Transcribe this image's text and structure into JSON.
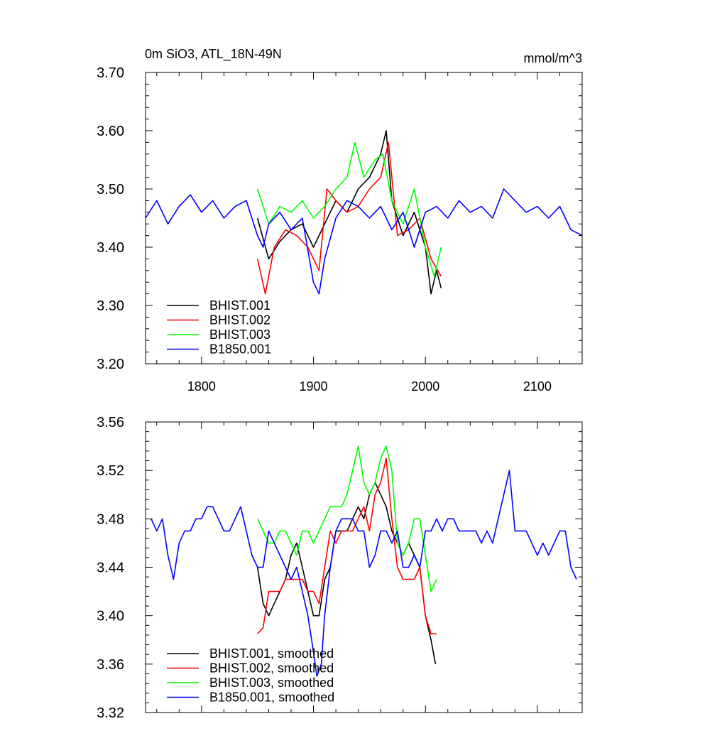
{
  "chart_data": [
    {
      "type": "line",
      "title": "0m SiO3, ATL_18N-49N",
      "units": "mmol/m^3",
      "xlim": [
        1750,
        2140
      ],
      "ylim": [
        3.2,
        3.7
      ],
      "xticks": [
        1800,
        1900,
        2000,
        2100
      ],
      "xtick_labels": [
        "1800",
        "1900",
        "2000",
        "2100"
      ],
      "yticks": [
        3.2,
        3.3,
        3.4,
        3.5,
        3.6,
        3.7
      ],
      "ytick_labels": [
        "3.20",
        "3.30",
        "3.40",
        "3.50",
        "3.60",
        "3.70"
      ],
      "grid": false,
      "legend_position": "bottom-left",
      "series": [
        {
          "name": "BHIST.001",
          "color": "#000000",
          "x": [
            1850,
            1860,
            1870,
            1880,
            1890,
            1900,
            1910,
            1920,
            1930,
            1940,
            1950,
            1960,
            1965,
            1970,
            1980,
            1990,
            2000,
            2005,
            2010,
            2014
          ],
          "y": [
            3.45,
            3.38,
            3.41,
            3.43,
            3.44,
            3.4,
            3.44,
            3.48,
            3.46,
            3.5,
            3.52,
            3.56,
            3.6,
            3.48,
            3.42,
            3.46,
            3.4,
            3.32,
            3.36,
            3.33
          ]
        },
        {
          "name": "BHIST.002",
          "color": "#ff0000",
          "x": [
            1850,
            1857,
            1865,
            1875,
            1885,
            1895,
            1905,
            1912,
            1920,
            1930,
            1940,
            1950,
            1960,
            1967,
            1975,
            1985,
            1995,
            2005,
            2014
          ],
          "y": [
            3.38,
            3.32,
            3.4,
            3.43,
            3.42,
            3.4,
            3.36,
            3.5,
            3.48,
            3.46,
            3.47,
            3.5,
            3.52,
            3.58,
            3.42,
            3.43,
            3.45,
            3.38,
            3.35
          ]
        },
        {
          "name": "BHIST.003",
          "color": "#00ff00",
          "x": [
            1850,
            1860,
            1870,
            1880,
            1890,
            1900,
            1910,
            1920,
            1930,
            1937,
            1945,
            1955,
            1962,
            1970,
            1980,
            1990,
            2000,
            2008,
            2014
          ],
          "y": [
            3.5,
            3.44,
            3.47,
            3.46,
            3.48,
            3.45,
            3.47,
            3.5,
            3.52,
            3.58,
            3.52,
            3.55,
            3.56,
            3.48,
            3.44,
            3.5,
            3.4,
            3.35,
            3.4
          ]
        },
        {
          "name": "B1850.001",
          "color": "#0000ff",
          "x": [
            1750,
            1760,
            1770,
            1780,
            1790,
            1800,
            1810,
            1820,
            1830,
            1840,
            1850,
            1855,
            1860,
            1870,
            1880,
            1890,
            1900,
            1905,
            1910,
            1920,
            1930,
            1940,
            1950,
            1960,
            1970,
            1980,
            1990,
            2000,
            2010,
            2020,
            2030,
            2040,
            2050,
            2060,
            2070,
            2080,
            2090,
            2100,
            2110,
            2120,
            2130,
            2140
          ],
          "y": [
            3.45,
            3.48,
            3.44,
            3.47,
            3.49,
            3.46,
            3.48,
            3.45,
            3.47,
            3.48,
            3.42,
            3.4,
            3.44,
            3.46,
            3.43,
            3.45,
            3.34,
            3.32,
            3.38,
            3.45,
            3.48,
            3.47,
            3.45,
            3.47,
            3.43,
            3.46,
            3.4,
            3.46,
            3.47,
            3.45,
            3.48,
            3.46,
            3.47,
            3.45,
            3.5,
            3.48,
            3.46,
            3.47,
            3.45,
            3.47,
            3.43,
            3.42
          ]
        }
      ]
    },
    {
      "type": "line",
      "xlim": [
        1750,
        2140
      ],
      "ylim": [
        3.32,
        3.56
      ],
      "xticks": [
        1800,
        1900,
        2000,
        2100
      ],
      "yticks": [
        3.32,
        3.36,
        3.4,
        3.44,
        3.48,
        3.52,
        3.56
      ],
      "ytick_labels": [
        "3.32",
        "3.36",
        "3.40",
        "3.44",
        "3.48",
        "3.52",
        "3.56"
      ],
      "grid": false,
      "legend_position": "bottom-left",
      "series": [
        {
          "name": "BHIST.001, smoothed",
          "color": "#000000",
          "x": [
            1850,
            1855,
            1860,
            1865,
            1870,
            1875,
            1880,
            1885,
            1890,
            1895,
            1900,
            1905,
            1910,
            1915,
            1920,
            1925,
            1930,
            1935,
            1940,
            1945,
            1950,
            1955,
            1960,
            1965,
            1970,
            1975,
            1980,
            1985,
            1990,
            1995,
            2000,
            2005,
            2009
          ],
          "y": [
            3.44,
            3.41,
            3.4,
            3.41,
            3.42,
            3.43,
            3.45,
            3.46,
            3.44,
            3.42,
            3.4,
            3.4,
            3.43,
            3.44,
            3.47,
            3.47,
            3.47,
            3.48,
            3.49,
            3.48,
            3.5,
            3.51,
            3.5,
            3.49,
            3.47,
            3.46,
            3.45,
            3.46,
            3.45,
            3.44,
            3.4,
            3.38,
            3.36
          ]
        },
        {
          "name": "BHIST.002, smoothed",
          "color": "#ff0000",
          "x": [
            1850,
            1855,
            1860,
            1865,
            1870,
            1875,
            1880,
            1885,
            1890,
            1895,
            1900,
            1905,
            1910,
            1915,
            1920,
            1925,
            1930,
            1935,
            1940,
            1945,
            1950,
            1955,
            1960,
            1965,
            1970,
            1975,
            1980,
            1985,
            1990,
            1995,
            2000,
            2005,
            2010
          ],
          "y": [
            3.385,
            3.39,
            3.42,
            3.42,
            3.42,
            3.43,
            3.43,
            3.43,
            3.43,
            3.42,
            3.42,
            3.41,
            3.44,
            3.47,
            3.46,
            3.47,
            3.47,
            3.47,
            3.48,
            3.49,
            3.47,
            3.5,
            3.51,
            3.53,
            3.48,
            3.44,
            3.43,
            3.43,
            3.43,
            3.44,
            3.4,
            3.385,
            3.385
          ]
        },
        {
          "name": "BHIST.003, smoothed",
          "color": "#00ff00",
          "x": [
            1850,
            1855,
            1860,
            1865,
            1870,
            1875,
            1880,
            1885,
            1890,
            1895,
            1900,
            1905,
            1910,
            1915,
            1920,
            1925,
            1930,
            1935,
            1940,
            1945,
            1950,
            1955,
            1960,
            1965,
            1970,
            1975,
            1980,
            1985,
            1990,
            1995,
            2000,
            2005,
            2010
          ],
          "y": [
            3.48,
            3.47,
            3.46,
            3.46,
            3.47,
            3.47,
            3.46,
            3.45,
            3.47,
            3.47,
            3.46,
            3.47,
            3.48,
            3.49,
            3.49,
            3.49,
            3.5,
            3.52,
            3.54,
            3.51,
            3.5,
            3.51,
            3.53,
            3.54,
            3.52,
            3.46,
            3.45,
            3.46,
            3.48,
            3.48,
            3.45,
            3.42,
            3.43
          ]
        },
        {
          "name": "B1850.001, smoothed",
          "color": "#0000ff",
          "x": [
            1755,
            1760,
            1765,
            1770,
            1775,
            1780,
            1785,
            1790,
            1795,
            1800,
            1805,
            1810,
            1815,
            1820,
            1825,
            1830,
            1835,
            1840,
            1845,
            1850,
            1855,
            1860,
            1865,
            1870,
            1875,
            1880,
            1885,
            1890,
            1895,
            1900,
            1903,
            1907,
            1910,
            1915,
            1920,
            1925,
            1930,
            1935,
            1940,
            1945,
            1950,
            1955,
            1960,
            1965,
            1970,
            1975,
            1980,
            1985,
            1990,
            1995,
            2000,
            2005,
            2010,
            2015,
            2020,
            2025,
            2030,
            2035,
            2040,
            2045,
            2050,
            2055,
            2060,
            2065,
            2070,
            2075,
            2080,
            2085,
            2090,
            2095,
            2100,
            2105,
            2110,
            2115,
            2120,
            2125,
            2130,
            2135
          ],
          "y": [
            3.48,
            3.47,
            3.48,
            3.45,
            3.43,
            3.46,
            3.47,
            3.47,
            3.48,
            3.48,
            3.49,
            3.49,
            3.48,
            3.47,
            3.47,
            3.48,
            3.49,
            3.47,
            3.45,
            3.44,
            3.44,
            3.47,
            3.46,
            3.45,
            3.44,
            3.43,
            3.44,
            3.42,
            3.4,
            3.37,
            3.35,
            3.36,
            3.4,
            3.44,
            3.47,
            3.48,
            3.48,
            3.48,
            3.47,
            3.47,
            3.44,
            3.45,
            3.47,
            3.47,
            3.46,
            3.47,
            3.44,
            3.44,
            3.45,
            3.44,
            3.47,
            3.47,
            3.48,
            3.47,
            3.48,
            3.48,
            3.47,
            3.47,
            3.47,
            3.47,
            3.46,
            3.47,
            3.46,
            3.48,
            3.5,
            3.52,
            3.47,
            3.47,
            3.47,
            3.46,
            3.45,
            3.46,
            3.45,
            3.46,
            3.47,
            3.47,
            3.44,
            3.43
          ]
        }
      ]
    }
  ]
}
